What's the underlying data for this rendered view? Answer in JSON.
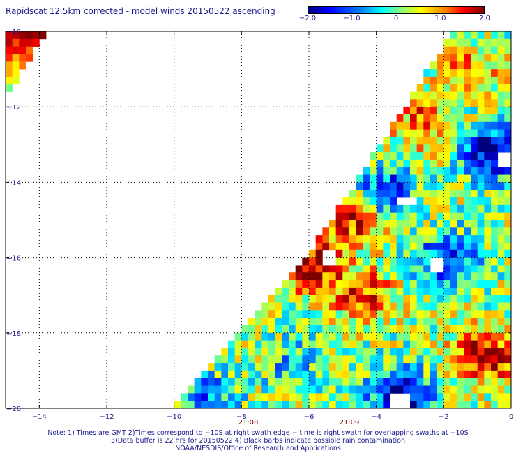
{
  "chart_data": {
    "type": "heatmap",
    "title": "Rapidscat 12.5km corrected - model winds 20150522 ascending",
    "xlabel": "",
    "ylabel": "",
    "xlim": [
      -15,
      0
    ],
    "ylim": [
      -20,
      -10
    ],
    "x_ticks": [
      -14,
      -12,
      -10,
      -8,
      -6,
      -4,
      -2,
      0
    ],
    "y_ticks": [
      -10,
      -12,
      -14,
      -16,
      -18,
      -20
    ],
    "x_tick_labels": [
      "−14",
      "−12",
      "−10",
      "−8",
      "−6",
      "−4",
      "−2",
      "0"
    ],
    "y_tick_labels": [
      "−10",
      "−12",
      "−14",
      "−16",
      "−18",
      "−20"
    ],
    "grid": true,
    "colorbar": {
      "min": -2.0,
      "max": 2.0,
      "tick_values": [
        -2.0,
        -1.0,
        0,
        1.0,
        2.0
      ],
      "tick_labels": [
        "−2.0",
        "−1.0",
        "0",
        "1.0",
        "2.0"
      ]
    },
    "time_labels": [
      {
        "x": -7.8,
        "text": "21:08"
      },
      {
        "x": -4.8,
        "text": "21:09"
      }
    ],
    "swath": {
      "corner_triangle": {
        "lon_west": -15,
        "lon_east": -13.8,
        "lat_north": -10,
        "lat_south": -11.8
      },
      "main_edge": [
        [
          -1.7,
          -10
        ],
        [
          -6.0,
          -15.9
        ],
        [
          -10.0,
          -20
        ]
      ]
    },
    "features": [
      {
        "lon": -0.8,
        "lat": -18.6,
        "value": 2.0
      },
      {
        "lon": -6.0,
        "lat": -16.2,
        "value": 2.0
      },
      {
        "lon": -4.6,
        "lat": -14.9,
        "value": 1.8
      },
      {
        "lon": -0.5,
        "lat": -13.2,
        "value": -2.0
      },
      {
        "lon": -3.8,
        "lat": -14.3,
        "value": -1.6
      },
      {
        "lon": -3.3,
        "lat": -19.7,
        "value": -2.0
      },
      {
        "lon": -1.9,
        "lat": -16.1,
        "value": -1.5
      },
      {
        "lon": -2.6,
        "lat": -12.4,
        "value": 1.2
      },
      {
        "lon": -4.4,
        "lat": -17.0,
        "value": 1.3
      },
      {
        "lon": -8.0,
        "lat": -18.5,
        "value": 0.4
      },
      {
        "lon": -9.0,
        "lat": -19.7,
        "value": -0.9
      },
      {
        "lon": -14.6,
        "lat": -10.5,
        "value": 1.9
      },
      {
        "lon": -6.5,
        "lat": -18.8,
        "value": -0.6
      },
      {
        "lon": -1.2,
        "lat": -11.0,
        "value": 0.9
      }
    ],
    "missing": [
      {
        "lon": -0.2,
        "lat": -13.4
      },
      {
        "lon": -3.1,
        "lat": -14.5
      },
      {
        "lon": -2.2,
        "lat": -16.2
      },
      {
        "lon": -3.3,
        "lat": -19.8
      },
      {
        "lon": -5.4,
        "lat": -16.0
      }
    ]
  },
  "footer": {
    "line1": "Note: 1) Times are GMT 2)Times correspond to −10S at right swath edge − time is right swath for overlapping swaths at −10S",
    "line2": "3)Data buffer is 22 hrs for 20150522 4) Black barbs indicate possible rain contamination",
    "line3": "NOAA/NESDIS/Office of Research and Applications"
  }
}
